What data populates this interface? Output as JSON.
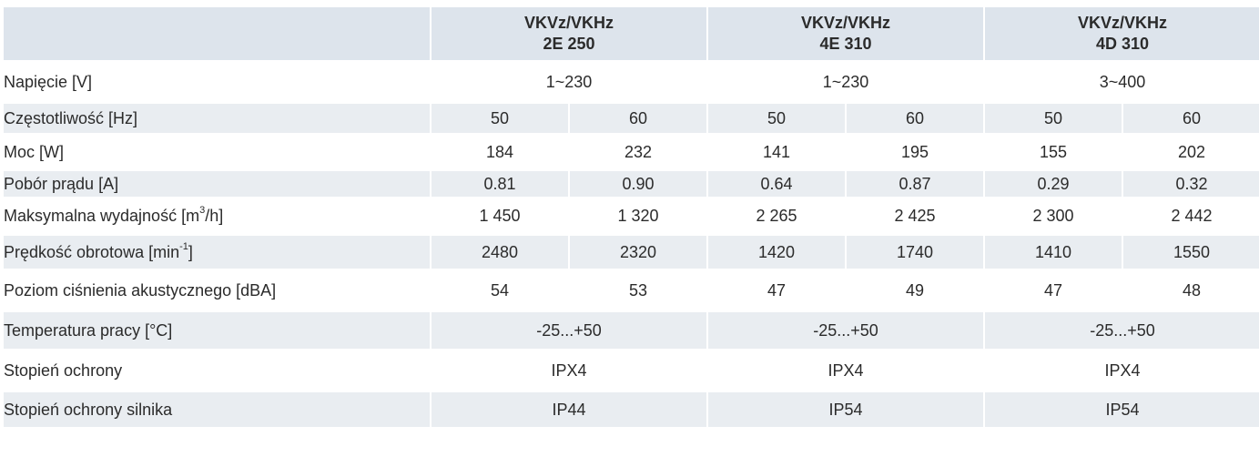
{
  "header": {
    "col1": {
      "line1": "VKVz/VKHz",
      "line2": "2E 250"
    },
    "col2": {
      "line1": "VKVz/VKHz",
      "line2": "4E 310"
    },
    "col3": {
      "line1": "VKVz/VKHz",
      "line2": "4D 310"
    }
  },
  "rows": {
    "napiecie": {
      "label": "Napięcie [V]",
      "v1": "1~230",
      "v2": "1~230",
      "v3": "3~400"
    },
    "czestotliwosc": {
      "label": "Częstotliwość [Hz]",
      "v": [
        "50",
        "60",
        "50",
        "60",
        "50",
        "60"
      ]
    },
    "moc": {
      "label": "Moc [W]",
      "v": [
        "184",
        "232",
        "141",
        "195",
        "155",
        "202"
      ]
    },
    "pobor": {
      "label": "Pobór prądu [A]",
      "v": [
        "0.81",
        "0.90",
        "0.64",
        "0.87",
        "0.29",
        "0.32"
      ]
    },
    "wydajnosc": {
      "label_pre": "Maksymalna wydajność [m",
      "label_sup": "3",
      "label_post": "/h]",
      "v": [
        "1 450",
        "1 320",
        "2 265",
        "2 425",
        "2 300",
        "2 442"
      ]
    },
    "predkosc": {
      "label_pre": "Prędkość obrotowa [min",
      "label_sup": "-1",
      "label_post": "]",
      "v": [
        "2480",
        "2320",
        "1420",
        "1740",
        "1410",
        "1550"
      ]
    },
    "halas": {
      "label": "Poziom ciśnienia akustycznego [dBA]",
      "v": [
        "54",
        "53",
        "47",
        "49",
        "47",
        "48"
      ]
    },
    "temperatura": {
      "label": "Temperatura pracy [°C]",
      "v1": "-25...+50",
      "v2": "-25...+50",
      "v3": "-25...+50"
    },
    "ochrona": {
      "label": "Stopień ochrony",
      "v1": "IPX4",
      "v2": "IPX4",
      "v3": "IPX4"
    },
    "ochrona_silnika": {
      "label": "Stopień ochrony silnika",
      "v1": "IP44",
      "v2": "IP54",
      "v3": "IP54"
    }
  }
}
